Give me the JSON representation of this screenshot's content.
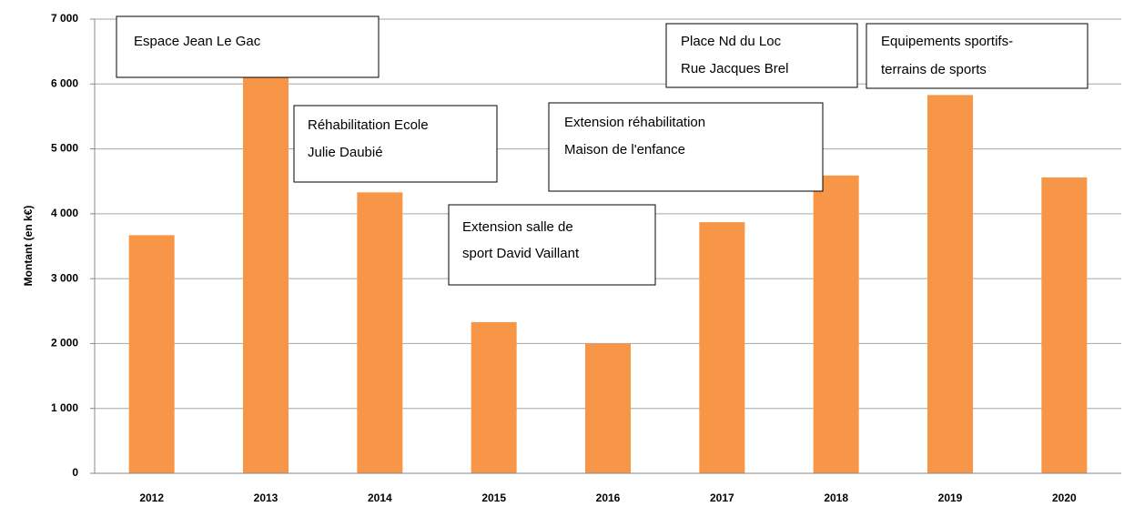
{
  "chart_data": {
    "type": "bar",
    "y_label": "Montant (en k€)",
    "categories": [
      "2012",
      "2013",
      "2014",
      "2015",
      "2016",
      "2017",
      "2018",
      "2019",
      "2020"
    ],
    "values": [
      3670,
      6200,
      4330,
      2330,
      2000,
      3870,
      4590,
      5830,
      4560
    ],
    "color": "#f79646",
    "ylim": [
      0,
      7000
    ],
    "yticks": [
      0,
      {
        "value": 1000,
        "label": "1 000"
      },
      {
        "value": 2000,
        "label": "2 000"
      },
      {
        "value": 3000,
        "label": "3 000"
      },
      {
        "value": 4000,
        "label": "4 000"
      },
      {
        "value": 5000,
        "label": "5 000"
      },
      {
        "value": 6000,
        "label": "6 000"
      },
      {
        "value": 7000,
        "label": "7 000"
      }
    ],
    "grid": true,
    "annotations": [
      {
        "lines": [
          "Espace Jean Le Gac"
        ]
      },
      {
        "lines": [
          "Réhabilitation Ecole",
          "Julie Daubié"
        ]
      },
      {
        "lines": [
          "Extension salle de",
          "sport  David Vaillant"
        ]
      },
      {
        "lines": [
          "Extension réhabilitation",
          "Maison de l'enfance"
        ]
      },
      {
        "lines": [
          "Place Nd du Loc",
          "Rue Jacques Brel"
        ]
      },
      {
        "lines": [
          "Equipements sportifs-",
          "terrains de sports"
        ]
      }
    ]
  }
}
